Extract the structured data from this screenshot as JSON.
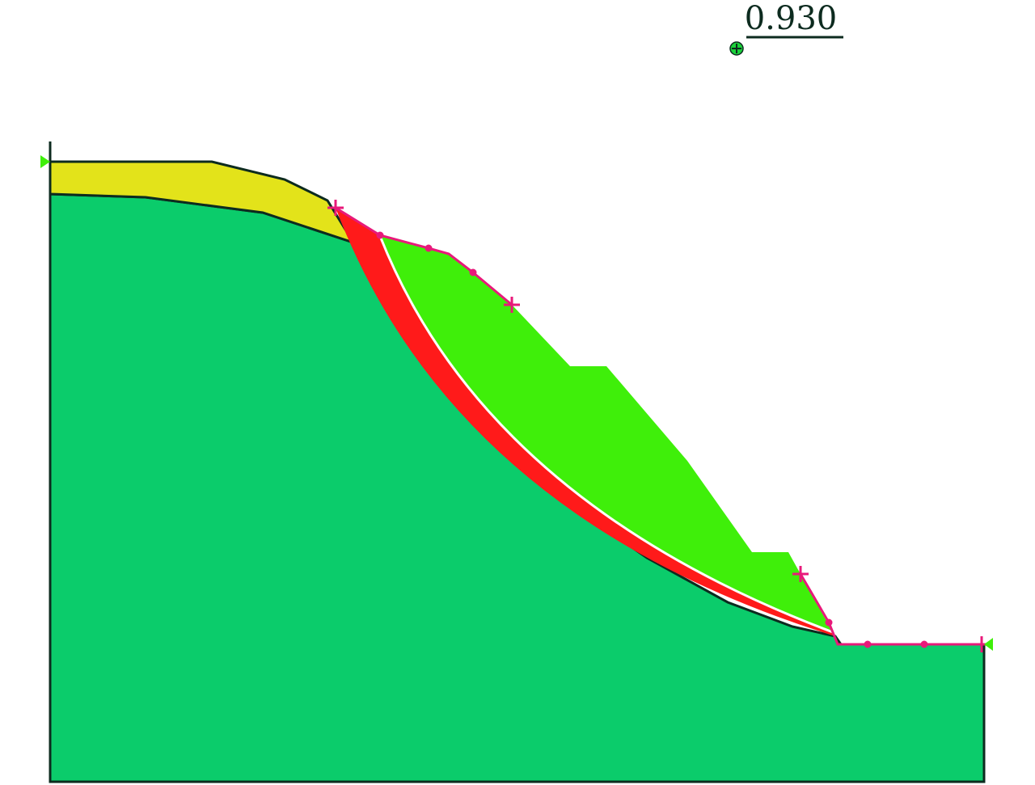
{
  "safety_factor": {
    "label": "0.930"
  }
}
